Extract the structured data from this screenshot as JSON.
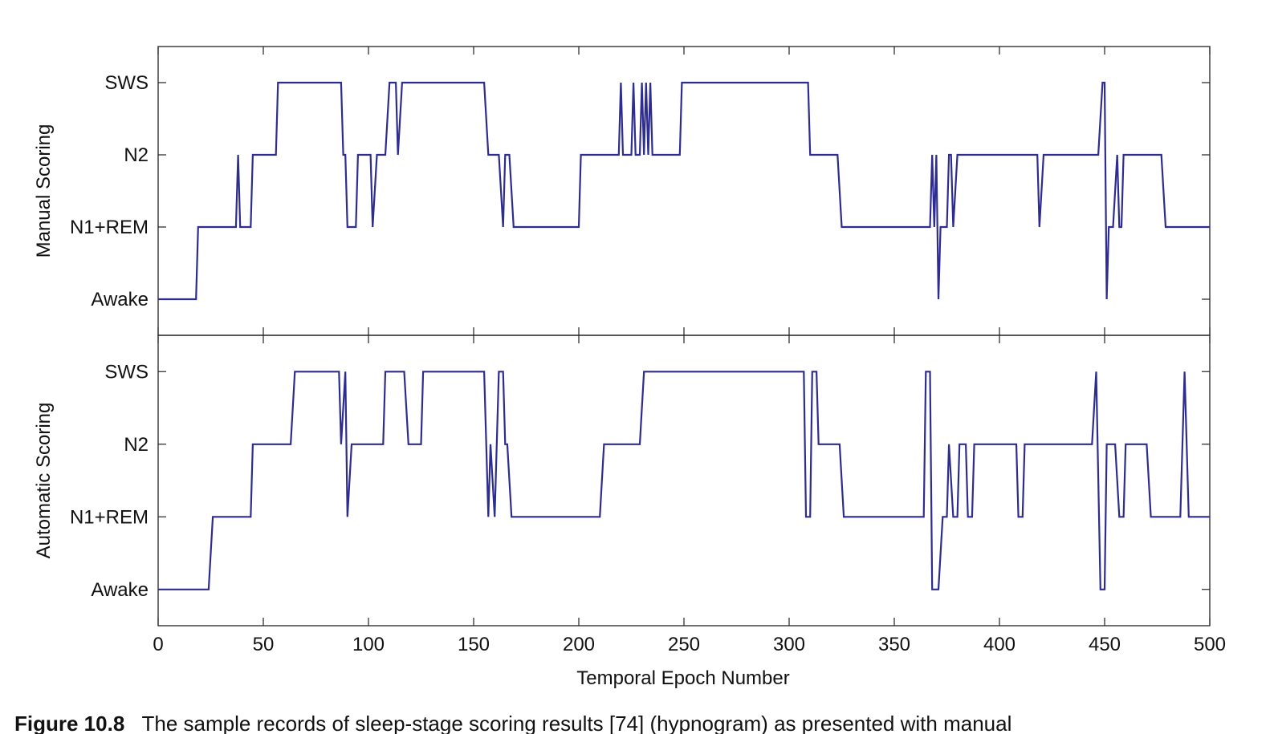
{
  "chart_data": {
    "type": "line",
    "xlabel": "Temporal Epoch Number",
    "xlim": [
      0,
      500
    ],
    "xticks": [
      0,
      50,
      100,
      150,
      200,
      250,
      300,
      350,
      400,
      450,
      500
    ],
    "ytick_labels": [
      "Awake",
      "N1+REM",
      "N2",
      "SWS"
    ],
    "ylim": [
      -0.5,
      3.5
    ],
    "line_color": "#2e2d8f",
    "panels": [
      {
        "ylabel": "Manual Scoring",
        "points": [
          [
            0,
            0
          ],
          [
            18,
            0
          ],
          [
            19,
            1
          ],
          [
            37,
            1
          ],
          [
            38,
            2
          ],
          [
            39,
            1
          ],
          [
            44,
            1
          ],
          [
            45,
            2
          ],
          [
            56,
            2
          ],
          [
            57,
            3
          ],
          [
            87,
            3
          ],
          [
            88,
            2
          ],
          [
            89,
            2
          ],
          [
            90,
            1
          ],
          [
            94,
            1
          ],
          [
            95,
            2
          ],
          [
            101,
            2
          ],
          [
            102,
            1
          ],
          [
            104,
            2
          ],
          [
            108,
            2
          ],
          [
            110,
            3
          ],
          [
            113,
            3
          ],
          [
            114,
            2
          ],
          [
            116,
            3
          ],
          [
            155,
            3
          ],
          [
            157,
            2
          ],
          [
            162,
            2
          ],
          [
            164,
            1
          ],
          [
            165,
            2
          ],
          [
            167,
            2
          ],
          [
            169,
            1
          ],
          [
            200,
            1
          ],
          [
            201,
            2
          ],
          [
            219,
            2
          ],
          [
            220,
            3
          ],
          [
            221,
            2
          ],
          [
            225,
            2
          ],
          [
            226,
            3
          ],
          [
            227,
            2
          ],
          [
            229,
            2
          ],
          [
            230,
            3
          ],
          [
            231,
            2
          ],
          [
            232,
            3
          ],
          [
            233,
            2
          ],
          [
            234,
            3
          ],
          [
            235,
            2
          ],
          [
            248,
            2
          ],
          [
            249,
            3
          ],
          [
            309,
            3
          ],
          [
            310,
            2
          ],
          [
            323,
            2
          ],
          [
            325,
            1
          ],
          [
            367,
            1
          ],
          [
            368,
            2
          ],
          [
            369,
            1
          ],
          [
            370,
            2
          ],
          [
            371,
            0
          ],
          [
            372,
            1
          ],
          [
            375,
            1
          ],
          [
            376,
            2
          ],
          [
            377,
            2
          ],
          [
            378,
            1
          ],
          [
            380,
            2
          ],
          [
            418,
            2
          ],
          [
            419,
            1
          ],
          [
            421,
            2
          ],
          [
            447,
            2
          ],
          [
            449,
            3
          ],
          [
            450,
            3
          ],
          [
            451,
            0
          ],
          [
            452,
            1
          ],
          [
            454,
            1
          ],
          [
            456,
            2
          ],
          [
            457,
            1
          ],
          [
            458,
            1
          ],
          [
            459,
            2
          ],
          [
            477,
            2
          ],
          [
            479,
            1
          ],
          [
            500,
            1
          ]
        ]
      },
      {
        "ylabel": "Automatic Scoring",
        "points": [
          [
            0,
            0
          ],
          [
            24,
            0
          ],
          [
            26,
            1
          ],
          [
            44,
            1
          ],
          [
            45,
            2
          ],
          [
            63,
            2
          ],
          [
            65,
            3
          ],
          [
            86,
            3
          ],
          [
            87,
            2
          ],
          [
            89,
            3
          ],
          [
            90,
            1
          ],
          [
            92,
            2
          ],
          [
            107,
            2
          ],
          [
            108,
            3
          ],
          [
            117,
            3
          ],
          [
            119,
            2
          ],
          [
            125,
            2
          ],
          [
            126,
            3
          ],
          [
            155,
            3
          ],
          [
            157,
            1
          ],
          [
            158,
            2
          ],
          [
            160,
            1
          ],
          [
            162,
            3
          ],
          [
            164,
            3
          ],
          [
            165,
            2
          ],
          [
            166,
            2
          ],
          [
            168,
            1
          ],
          [
            210,
            1
          ],
          [
            212,
            2
          ],
          [
            229,
            2
          ],
          [
            231,
            3
          ],
          [
            307,
            3
          ],
          [
            308,
            1
          ],
          [
            310,
            1
          ],
          [
            311,
            3
          ],
          [
            313,
            3
          ],
          [
            314,
            2
          ],
          [
            324,
            2
          ],
          [
            326,
            1
          ],
          [
            364,
            1
          ],
          [
            365,
            3
          ],
          [
            367,
            3
          ],
          [
            368,
            0
          ],
          [
            371,
            0
          ],
          [
            373,
            1
          ],
          [
            375,
            1
          ],
          [
            376,
            2
          ],
          [
            378,
            1
          ],
          [
            380,
            1
          ],
          [
            381,
            2
          ],
          [
            384,
            2
          ],
          [
            385,
            1
          ],
          [
            387,
            1
          ],
          [
            388,
            2
          ],
          [
            408,
            2
          ],
          [
            409,
            1
          ],
          [
            411,
            1
          ],
          [
            412,
            2
          ],
          [
            444,
            2
          ],
          [
            446,
            3
          ],
          [
            448,
            0
          ],
          [
            450,
            0
          ],
          [
            451,
            2
          ],
          [
            455,
            2
          ],
          [
            457,
            1
          ],
          [
            459,
            1
          ],
          [
            460,
            2
          ],
          [
            470,
            2
          ],
          [
            472,
            1
          ],
          [
            486,
            1
          ],
          [
            488,
            3
          ],
          [
            490,
            1
          ],
          [
            500,
            1
          ]
        ]
      }
    ]
  },
  "caption": {
    "label": "Figure 10.8",
    "text": "The sample records of sleep-stage scoring results [74] (hypnogram) as presented with manual"
  }
}
